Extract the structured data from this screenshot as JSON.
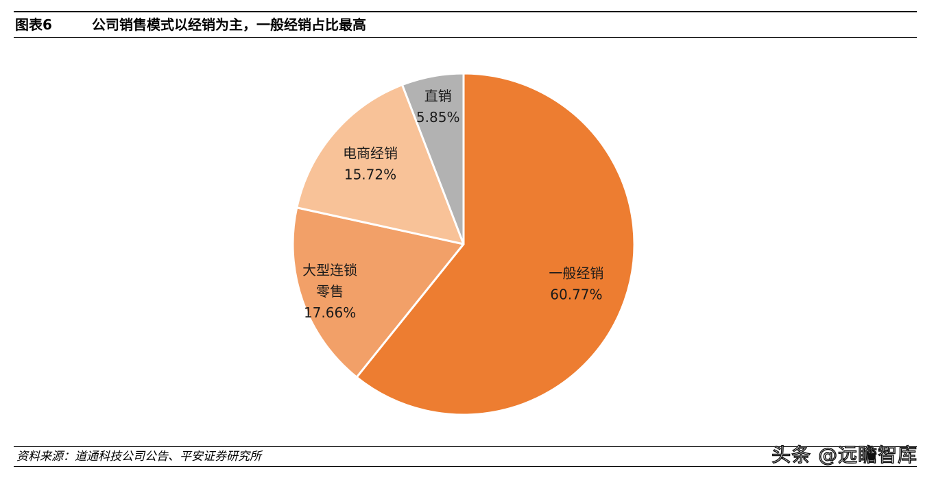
{
  "header": {
    "figure_label": "图表6",
    "title": "公司销售模式以经销为主，一般经销占比最高"
  },
  "chart_data": {
    "type": "pie",
    "title": "",
    "slices": [
      {
        "label": "一般经销",
        "value": 60.77,
        "value_label": "60.77%",
        "color": "#ED7D31"
      },
      {
        "label": "大型连锁零售",
        "label_lines": [
          "大型连锁",
          "零售"
        ],
        "value": 17.66,
        "value_label": "17.66%",
        "color": "#F2A068"
      },
      {
        "label": "电商经销",
        "value": 15.72,
        "value_label": "15.72%",
        "color": "#F8C298"
      },
      {
        "label": "直销",
        "value": 5.85,
        "value_label": "5.85%",
        "color": "#B2B2B2"
      }
    ],
    "start": "12 o'clock",
    "direction": "clockwise"
  },
  "footer": {
    "source": "资料来源：道通科技公司公告、平安证券研究所",
    "watermark": "头条 @远瞻智库"
  }
}
